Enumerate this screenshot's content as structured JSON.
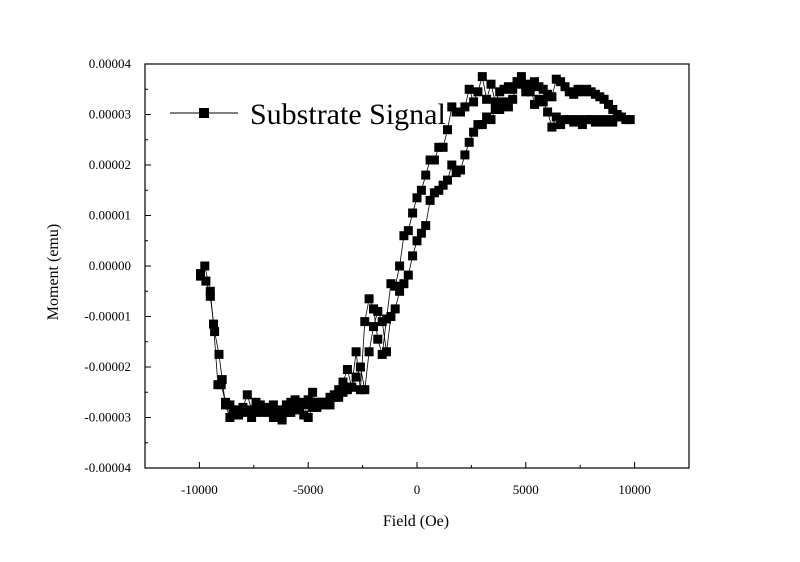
{
  "chart_data": {
    "type": "scatter",
    "xlabel": "Field (Oe)",
    "ylabel": "Moment (emu)",
    "xlim": [
      -12500,
      12500
    ],
    "ylim": [
      -4e-05,
      4e-05
    ],
    "x_ticks": [
      -10000,
      -5000,
      0,
      5000,
      10000
    ],
    "x_tick_labels": [
      "-10000",
      "-5000",
      "0",
      "5000",
      "10000"
    ],
    "y_ticks": [
      -4e-05,
      -3e-05,
      -2e-05,
      -1e-05,
      0,
      1e-05,
      2e-05,
      3e-05,
      4e-05
    ],
    "y_tick_labels": [
      "-0.00004",
      "-0.00003",
      "-0.00002",
      "-0.00001",
      "0.00000",
      "0.00001",
      "0.00002",
      "0.00003",
      "0.00004"
    ],
    "grid": false,
    "legend_position": "top-left",
    "series": [
      {
        "name": "Substrate Signal",
        "color": "#000000",
        "marker": "square",
        "connected": true,
        "x": [
          -9950,
          -9700,
          -9500,
          -9300,
          -9100,
          -8950,
          -8800,
          -8600,
          -8450,
          -8200,
          -8000,
          -7850,
          -7600,
          -7400,
          -7200,
          -7000,
          -6800,
          -6600,
          -6400,
          -6200,
          -6000,
          -5800,
          -5600,
          -5400,
          -5200,
          -5000,
          -4800,
          -4600,
          -4400,
          -4200,
          -4000,
          -3800,
          -3600,
          -3400,
          -3200,
          -3000,
          -2800,
          -2600,
          -2400,
          -2200,
          -2000,
          -1800,
          -1600,
          -1400,
          -1200,
          -1000,
          -800,
          -600,
          -400,
          -200,
          0,
          200,
          400,
          600,
          800,
          1000,
          1200,
          1400,
          1600,
          1800,
          2000,
          2200,
          2400,
          2600,
          2800,
          3000,
          3200,
          3400,
          3600,
          3800,
          4000,
          4200,
          4400,
          4600,
          4800,
          5000,
          5200,
          5400,
          5600,
          5800,
          6000,
          6200,
          6400,
          6600,
          6800,
          7000,
          7200,
          7400,
          7600,
          7800,
          8000,
          8200,
          8400,
          8600,
          8800,
          9000,
          9200,
          9400,
          9600,
          9800
        ],
        "y": [
          -1.5e-06,
          -3e-06,
          -6e-06,
          -1.3e-05,
          -1.75e-05,
          -2.25e-05,
          -2.75e-05,
          -3e-05,
          -2.85e-05,
          -2.95e-05,
          -2.85e-05,
          -2.9e-05,
          -3e-05,
          -2.7e-05,
          -2.9e-05,
          -2.85e-05,
          -2.88e-05,
          -3e-05,
          -2.85e-05,
          -3e-05,
          -2.9e-05,
          -2.9e-05,
          -2.85e-05,
          -2.7e-05,
          -2.95e-05,
          -3e-05,
          -2.8e-05,
          -2.7e-05,
          -2.7e-05,
          -2.7e-05,
          -2.6e-05,
          -2.55e-05,
          -2.6e-05,
          -2.5e-05,
          -2.45e-05,
          -2.4e-05,
          -2.2e-05,
          -2e-05,
          -2.45e-05,
          -1.7e-05,
          -1.2e-05,
          -9e-06,
          -1.1e-05,
          -1.7e-05,
          -1e-05,
          -8.5e-06,
          -5e-06,
          -3.5e-06,
          -1.8e-06,
          2e-06,
          5e-06,
          6.5e-06,
          8e-06,
          1.3e-05,
          1.45e-05,
          1.5e-05,
          1.6e-05,
          1.7e-05,
          2e-05,
          1.85e-05,
          1.9e-05,
          2.2e-05,
          2.45e-05,
          2.65e-05,
          2.8e-05,
          2.8e-05,
          2.95e-05,
          2.9e-05,
          3.1e-05,
          3.1e-05,
          3.25e-05,
          3.15e-05,
          3.3e-05,
          3.65e-05,
          3.75e-05,
          3.55e-05,
          3.45e-05,
          3.65e-05,
          3.55e-05,
          3.5e-05,
          3.4e-05,
          3.35e-05,
          3.7e-05,
          3.65e-05,
          3.55e-05,
          3.45e-05,
          3.4e-05,
          3.5e-05,
          3.45e-05,
          3.5e-05,
          3.45e-05,
          3.4e-05,
          3.35e-05,
          3.3e-05,
          3.2e-05,
          3.1e-05,
          3e-05,
          2.95e-05,
          2.9e-05,
          2.9e-05
        ]
      },
      {
        "name": "",
        "color": "#000000",
        "marker": "square",
        "connected": true,
        "x": [
          -9950,
          -9750,
          -9500,
          -9350,
          -9150,
          -9000,
          -8800,
          -8600,
          -8400,
          -8200,
          -8000,
          -7800,
          -7600,
          -7400,
          -7200,
          -7000,
          -6800,
          -6600,
          -6400,
          -6200,
          -6000,
          -5800,
          -5600,
          -5400,
          -5200,
          -5000,
          -4800,
          -4600,
          -4400,
          -4200,
          -4000,
          -3800,
          -3600,
          -3400,
          -3200,
          -3000,
          -2800,
          -2600,
          -2400,
          -2200,
          -2000,
          -1800,
          -1600,
          -1400,
          -1200,
          -1000,
          -800,
          -600,
          -400,
          -200,
          0,
          200,
          400,
          600,
          800,
          1000,
          1200,
          1400,
          1600,
          1800,
          2000,
          2200,
          2400,
          2600,
          2800,
          3000,
          3200,
          3400,
          3600,
          3800,
          4000,
          4200,
          4400,
          4600,
          4800,
          5000,
          5200,
          5400,
          5600,
          5800,
          6000,
          6200,
          6400,
          6600,
          6800,
          7000,
          7200,
          7400,
          7600,
          7800,
          8000,
          8200,
          8400,
          8600,
          8800,
          9000
        ],
        "y": [
          -2e-06,
          0,
          -5e-06,
          -1.15e-05,
          -2.35e-05,
          -2.35e-05,
          -2.7e-05,
          -2.75e-05,
          -2.85e-05,
          -2.9e-05,
          -2.8e-05,
          -2.55e-05,
          -2.85e-05,
          -2.8e-05,
          -2.75e-05,
          -2.8e-05,
          -2.9e-05,
          -2.75e-05,
          -2.9e-05,
          -3.05e-05,
          -2.75e-05,
          -2.7e-05,
          -2.65e-05,
          -2.8e-05,
          -2.75e-05,
          -2.65e-05,
          -2.5e-05,
          -2.8e-05,
          -2.7e-05,
          -2.75e-05,
          -2.75e-05,
          -2.6e-05,
          -2.45e-05,
          -2.3e-05,
          -2.05e-05,
          -2.4e-05,
          -1.7e-05,
          -2.45e-05,
          -1.1e-05,
          -6.5e-06,
          -8.5e-06,
          -1.45e-05,
          -1.75e-05,
          -1.05e-05,
          -3.5e-06,
          -4e-06,
          0,
          6e-06,
          7e-06,
          1.05e-05,
          1.35e-05,
          1.5e-05,
          1.8e-05,
          2.1e-05,
          2.1e-05,
          2.35e-05,
          2.35e-05,
          2.7e-05,
          3.15e-05,
          3.05e-05,
          3.05e-05,
          3.15e-05,
          3.5e-05,
          3.25e-05,
          3.45e-05,
          3.75e-05,
          3.3e-05,
          3.6e-05,
          3.25e-05,
          3.45e-05,
          3.5e-05,
          3.55e-05,
          3.5e-05,
          3.65e-05,
          3.6e-05,
          3.45e-05,
          3.6e-05,
          3.2e-05,
          3.3e-05,
          3.25e-05,
          3.05e-05,
          2.75e-05,
          2.95e-05,
          2.8e-05,
          2.9e-05,
          2.9e-05,
          2.85e-05,
          2.9e-05,
          2.8e-05,
          2.9e-05,
          2.9e-05,
          2.85e-05,
          2.9e-05,
          2.85e-05,
          2.9e-05,
          2.85e-05
        ]
      }
    ]
  }
}
